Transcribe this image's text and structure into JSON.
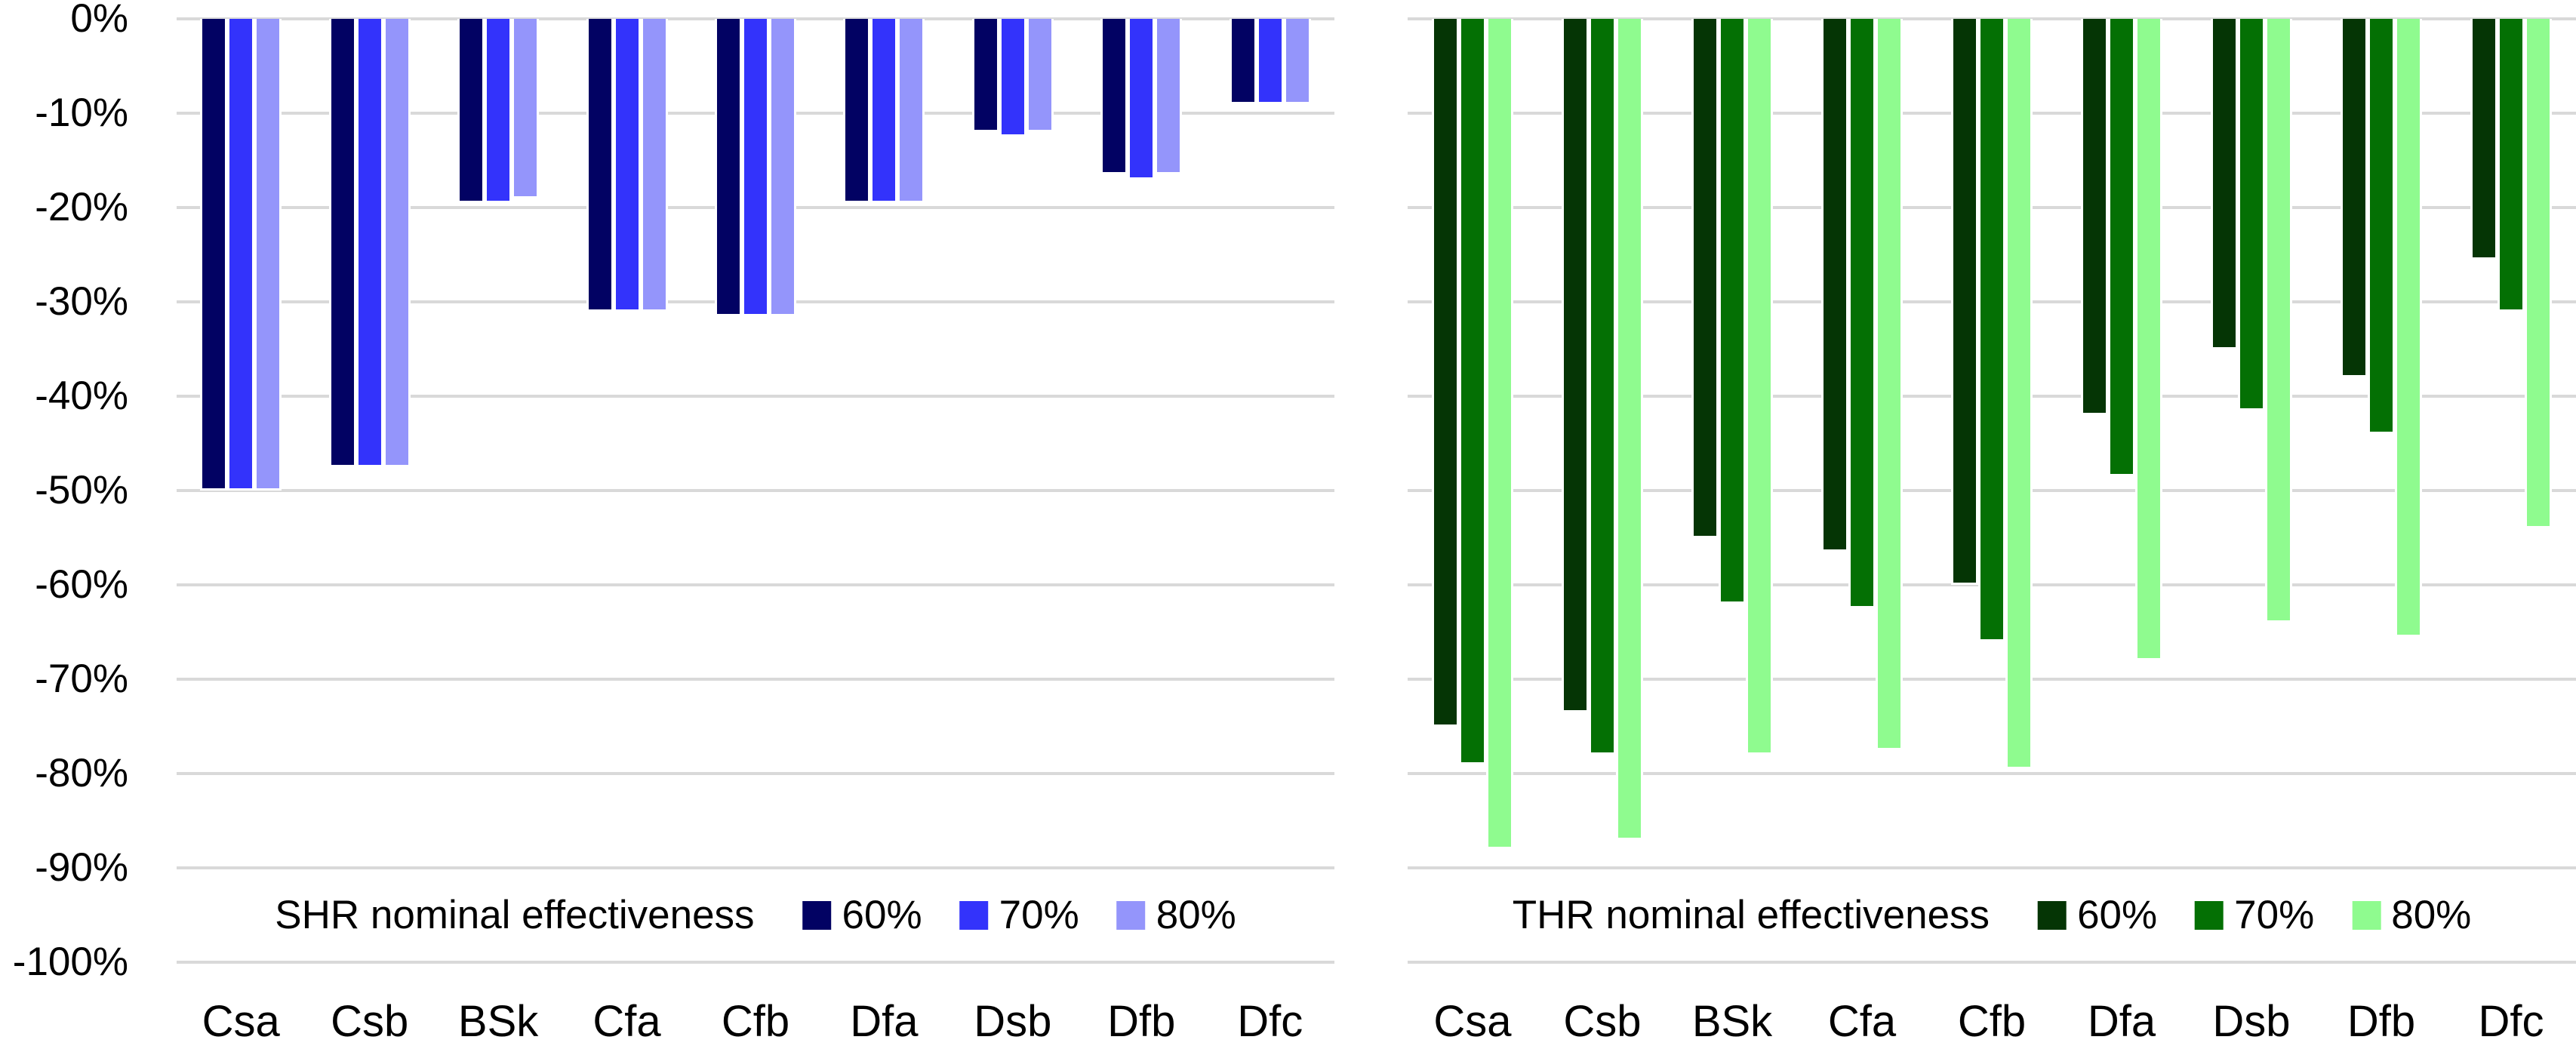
{
  "y_axis": {
    "labels": [
      "0%",
      "-10%",
      "-20%",
      "-30%",
      "-40%",
      "-50%",
      "-60%",
      "-70%",
      "-80%",
      "-90%",
      "-100%"
    ],
    "min": -100,
    "max": 0,
    "step": 10
  },
  "chart_data": [
    {
      "type": "bar",
      "id": "shr",
      "legend_title": "SHR nominal effectiveness",
      "categories": [
        "Csa",
        "Csb",
        "BSk",
        "Cfa",
        "Cfb",
        "Dfa",
        "Dsb",
        "Dfb",
        "Dfc"
      ],
      "series": [
        {
          "name": "60%",
          "color": "#020263",
          "values": [
            -50,
            -47.5,
            -19.5,
            -31,
            -31.5,
            -19.5,
            -12,
            -16.5,
            -9
          ]
        },
        {
          "name": "70%",
          "color": "#3333fb",
          "values": [
            -50,
            -47.5,
            -19.5,
            -31,
            -31.5,
            -19.5,
            -12.5,
            -17,
            -9
          ]
        },
        {
          "name": "80%",
          "color": "#9495fb",
          "values": [
            -50,
            -47.5,
            -19,
            -31,
            -31.5,
            -19.5,
            -12,
            -16.5,
            -9
          ]
        }
      ],
      "ylabel": "",
      "ylim": [
        -100,
        0
      ],
      "ytick_step": 10,
      "grid": true,
      "grid_color": "#d9d9d9",
      "legend_position": "bottom-inside"
    },
    {
      "type": "bar",
      "id": "thr",
      "legend_title": "THR nominal effectiveness",
      "categories": [
        "Csa",
        "Csb",
        "BSk",
        "Cfa",
        "Cfb",
        "Dfa",
        "Dsb",
        "Dfb",
        "Dfc"
      ],
      "series": [
        {
          "name": "60%",
          "color": "#053505",
          "values": [
            -75,
            -73.5,
            -55,
            -56.5,
            -60,
            -42,
            -35,
            -38,
            -25.5
          ]
        },
        {
          "name": "70%",
          "color": "#047004",
          "values": [
            -79,
            -78,
            -62,
            -62.5,
            -66,
            -48.5,
            -41.5,
            -44,
            -31
          ]
        },
        {
          "name": "80%",
          "color": "#8ffb8f",
          "values": [
            -88,
            -87,
            -78,
            -77.5,
            -79.5,
            -68,
            -64,
            -65.5,
            -54
          ]
        }
      ],
      "ylabel": "",
      "ylim": [
        -100,
        0
      ],
      "ytick_step": 10,
      "grid": true,
      "grid_color": "#d9d9d9",
      "legend_position": "bottom-inside"
    }
  ]
}
